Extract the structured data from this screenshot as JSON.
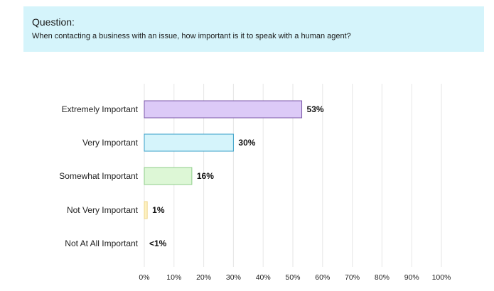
{
  "question": {
    "label": "Question:",
    "text": "When contacting a business with an issue, how important is it to speak with a human agent?"
  },
  "chart_data": {
    "type": "bar",
    "orientation": "horizontal",
    "categories": [
      "Extremely Important",
      "Very Important",
      "Somewhat Important",
      "Not Very Important",
      "Not At All Important"
    ],
    "values": [
      53,
      30,
      16,
      1,
      0
    ],
    "value_labels": [
      "53%",
      "30%",
      "16%",
      "1%",
      "<1%"
    ],
    "colors": [
      "#dccaf7",
      "#d5f4fb",
      "#ddf7d6",
      "#fdf1c2",
      "#ffffff"
    ],
    "border_colors": [
      "#7c5aa8",
      "#3aa0c8",
      "#8fce8a",
      "#f0d890",
      "#ffffff"
    ],
    "xlim": [
      0,
      100
    ],
    "x_ticks": [
      0,
      10,
      20,
      30,
      40,
      50,
      60,
      70,
      80,
      90,
      100
    ],
    "x_tick_labels": [
      "0%",
      "10%",
      "20%",
      "30%",
      "40%",
      "50%",
      "60%",
      "70%",
      "80%",
      "90%",
      "100%"
    ],
    "grid": true,
    "gridline_color": "#e6e6e6"
  }
}
